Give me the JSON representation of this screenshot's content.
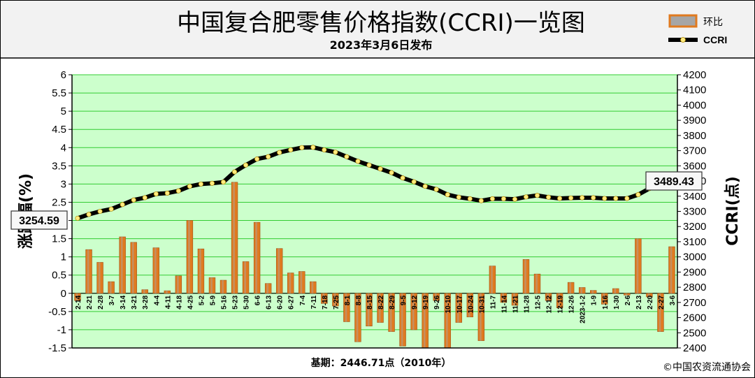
{
  "header": {
    "title": "中国复合肥零售价格指数(CCRI)一览图",
    "subtitle": "2023年3月6日发布"
  },
  "legend": {
    "bar_label": "环比",
    "line_label": "CCRI"
  },
  "footer": {
    "base_note": "基期：2446.71点（2010年）",
    "copyright": "©中国农资流通协会"
  },
  "colors": {
    "plot_bg": "#ccffcc",
    "grid": "#33cc33",
    "bar": "#e07a1f",
    "line": "#000000",
    "marker": "#ffeb80",
    "header_bg": "#f2f2f2"
  },
  "chart_data": {
    "type": "bar+line",
    "categories": [
      "2-14",
      "2-21",
      "2-28",
      "3-7",
      "3-14",
      "3-21",
      "3-28",
      "4-4",
      "4-11",
      "4-18",
      "4-25",
      "5-2",
      "5-9",
      "5-16",
      "5-23",
      "5-30",
      "6-6",
      "6-13",
      "6-20",
      "6-27",
      "7-4",
      "7-11",
      "7-18",
      "7-25",
      "8-1",
      "8-8",
      "8-15",
      "8-22",
      "8-29",
      "9-5",
      "9-12",
      "9-19",
      "9-26",
      "10-10",
      "10-17",
      "10-24",
      "10-31",
      "11-7",
      "11-14",
      "11-21",
      "11-28",
      "12-5",
      "12-12",
      "12-19",
      "12-26",
      "2023-1-2",
      "1-9",
      "1-16",
      "1-30",
      "2-6",
      "2-13",
      "2-20",
      "2-27",
      "3-6"
    ],
    "series": [
      {
        "name": "环比",
        "type": "bar",
        "axis": "left",
        "values": [
          -0.2,
          1.2,
          0.85,
          0.32,
          1.55,
          1.4,
          0.1,
          1.25,
          0.07,
          0.48,
          2.0,
          1.22,
          0.43,
          0.36,
          3.05,
          0.87,
          1.95,
          0.27,
          1.23,
          0.56,
          0.6,
          0.32,
          -0.28,
          -0.35,
          -0.78,
          -1.33,
          -0.9,
          -0.8,
          -1.05,
          -1.45,
          -1.0,
          -1.5,
          -0.2,
          -1.5,
          -0.8,
          -0.65,
          -1.3,
          0.75,
          -0.25,
          -0.33,
          0.93,
          0.53,
          -0.2,
          -0.4,
          0.3,
          0.16,
          0.08,
          -0.3,
          0.13,
          -0.05,
          1.5,
          -0.1,
          -1.05,
          1.28
        ]
      },
      {
        "name": "CCRI",
        "type": "line",
        "axis": "right",
        "values": [
          3254.59,
          3280,
          3300,
          3315,
          3345,
          3375,
          3390,
          3415,
          3420,
          3435,
          3465,
          3480,
          3485,
          3493,
          3560,
          3605,
          3645,
          3660,
          3688,
          3705,
          3720,
          3722,
          3705,
          3690,
          3660,
          3630,
          3605,
          3580,
          3555,
          3520,
          3495,
          3465,
          3445,
          3410,
          3393,
          3383,
          3370,
          3383,
          3383,
          3380,
          3395,
          3405,
          3393,
          3385,
          3388,
          3390,
          3390,
          3385,
          3385,
          3385,
          3410,
          3450,
          3470,
          3489.43
        ]
      }
    ],
    "y_left": {
      "label": "涨跌幅(%)",
      "min": -1.5,
      "max": 6,
      "ticks": [
        "6",
        "5.5",
        "5",
        "4.5",
        "4",
        "3.5",
        "3",
        "2.5",
        "2",
        "1.5",
        "1",
        "0.5",
        "0",
        "-0.5",
        "-1",
        "-1.5"
      ]
    },
    "y_right": {
      "label": "CCRI(点)",
      "min": 2400,
      "max": 4200,
      "ticks": [
        "4200",
        "4100",
        "4000",
        "3900",
        "3800",
        "3700",
        "3600",
        "3500",
        "3400",
        "3300",
        "3200",
        "3100",
        "3000",
        "2900",
        "2800",
        "2700",
        "2600",
        "2500",
        "2400"
      ]
    },
    "callouts": {
      "start": "3254.59",
      "end": "3489.43"
    },
    "grid": true,
    "legend_position": "top-right"
  }
}
